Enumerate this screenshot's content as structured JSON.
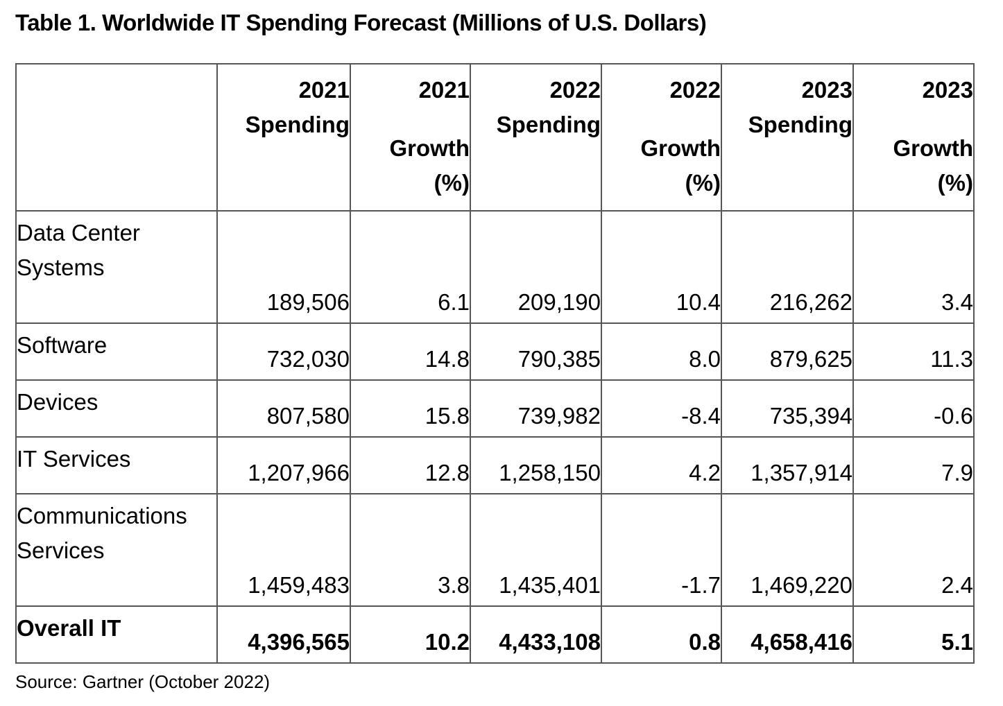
{
  "title": "Table 1. Worldwide IT Spending Forecast (Millions of U.S. Dollars)",
  "columns": [
    {
      "year": "2021",
      "label": "Spending",
      "unit": ""
    },
    {
      "year": "2021",
      "label": "Growth",
      "unit": "(%)"
    },
    {
      "year": "2022",
      "label": "Spending",
      "unit": ""
    },
    {
      "year": "2022",
      "label": "Growth",
      "unit": "(%)"
    },
    {
      "year": "2023",
      "label": "Spending",
      "unit": ""
    },
    {
      "year": "2023",
      "label": "Growth",
      "unit": "(%)"
    }
  ],
  "rows": [
    {
      "label": "Data Center Systems",
      "values": [
        "189,506",
        "6.1",
        "209,190",
        "10.4",
        "216,262",
        "3.4"
      ]
    },
    {
      "label": "Software",
      "values": [
        "732,030",
        "14.8",
        "790,385",
        "8.0",
        "879,625",
        "11.3"
      ]
    },
    {
      "label": "Devices",
      "values": [
        "807,580",
        "15.8",
        "739,982",
        "-8.4",
        "735,394",
        "-0.6"
      ]
    },
    {
      "label": "IT Services",
      "values": [
        "1,207,966",
        "12.8",
        "1,258,150",
        "4.2",
        "1,357,914",
        "7.9"
      ]
    },
    {
      "label": "Communications Services",
      "values": [
        "1,459,483",
        "3.8",
        "1,435,401",
        "-1.7",
        "1,469,220",
        "2.4"
      ]
    }
  ],
  "total": {
    "label": "Overall IT",
    "values": [
      "4,396,565",
      "10.2",
      "4,433,108",
      "0.8",
      "4,658,416",
      "5.1"
    ]
  },
  "source": "Source: Gartner (October 2022)"
}
